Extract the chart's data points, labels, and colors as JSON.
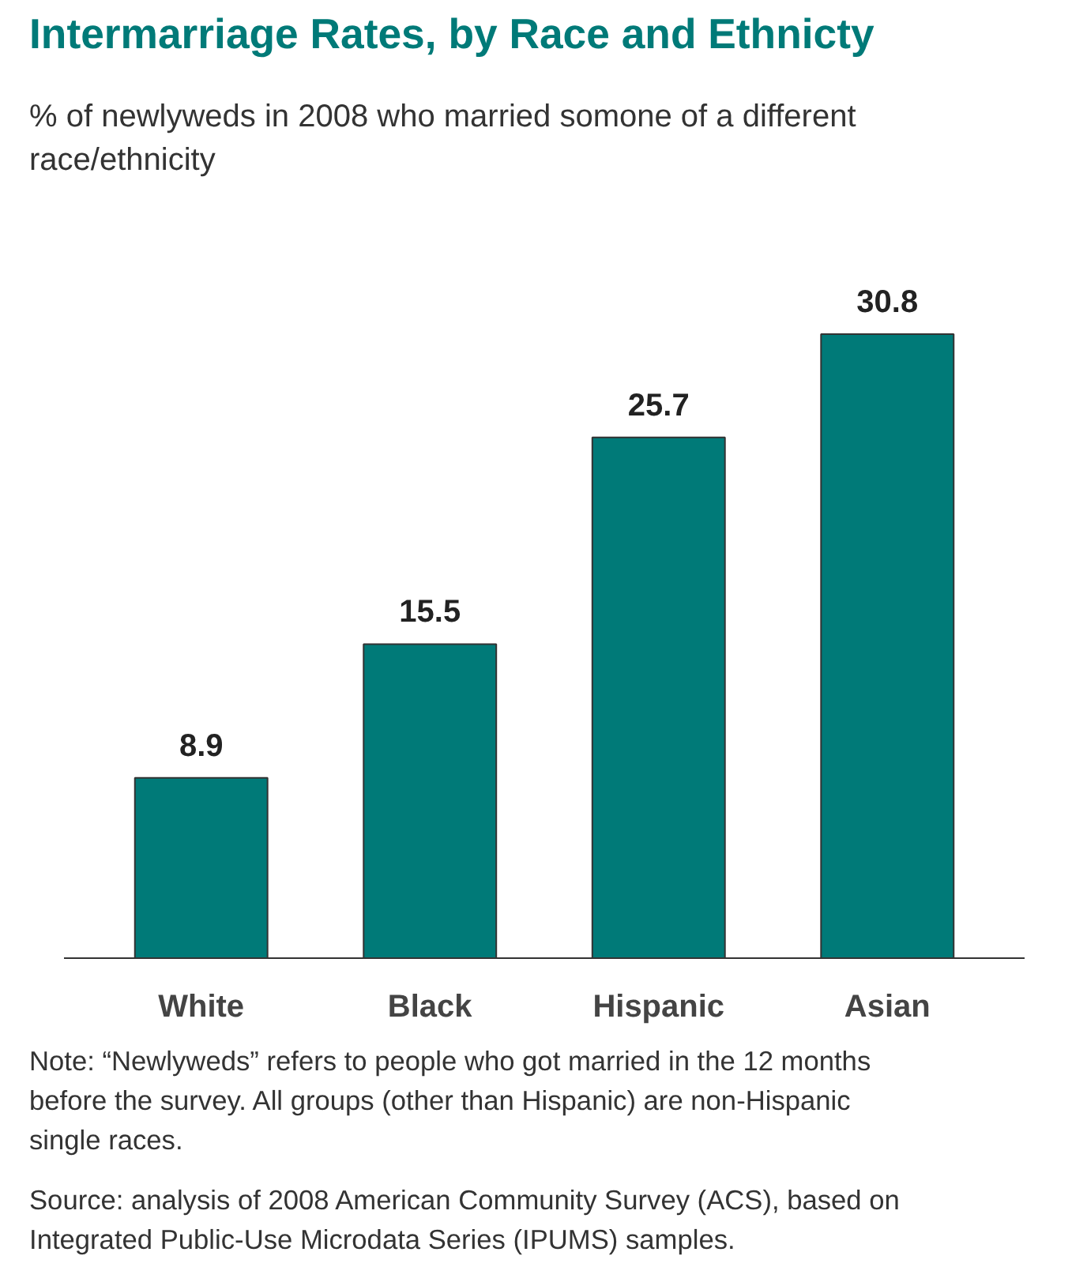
{
  "chart_data": {
    "type": "bar",
    "title": "Intermarriage Rates, by Race and Ethnicty",
    "subtitle": "% of newlyweds in 2008 who married somone of a different race/ethnicity",
    "categories": [
      "White",
      "Black",
      "Hispanic",
      "Asian"
    ],
    "values": [
      8.9,
      15.5,
      25.7,
      30.8
    ],
    "color": "#007a78",
    "data_labels": true,
    "grid": false,
    "annotations": [
      "Note: “Newlyweds” refers to people who got married in the 12 months before the survey. All groups (other than Hispanic) are non-Hispanic single races.",
      "Source: analysis of 2008 American Community Survey (ACS), based on Integrated Public-Use Microdata Series (IPUMS) samples."
    ]
  }
}
